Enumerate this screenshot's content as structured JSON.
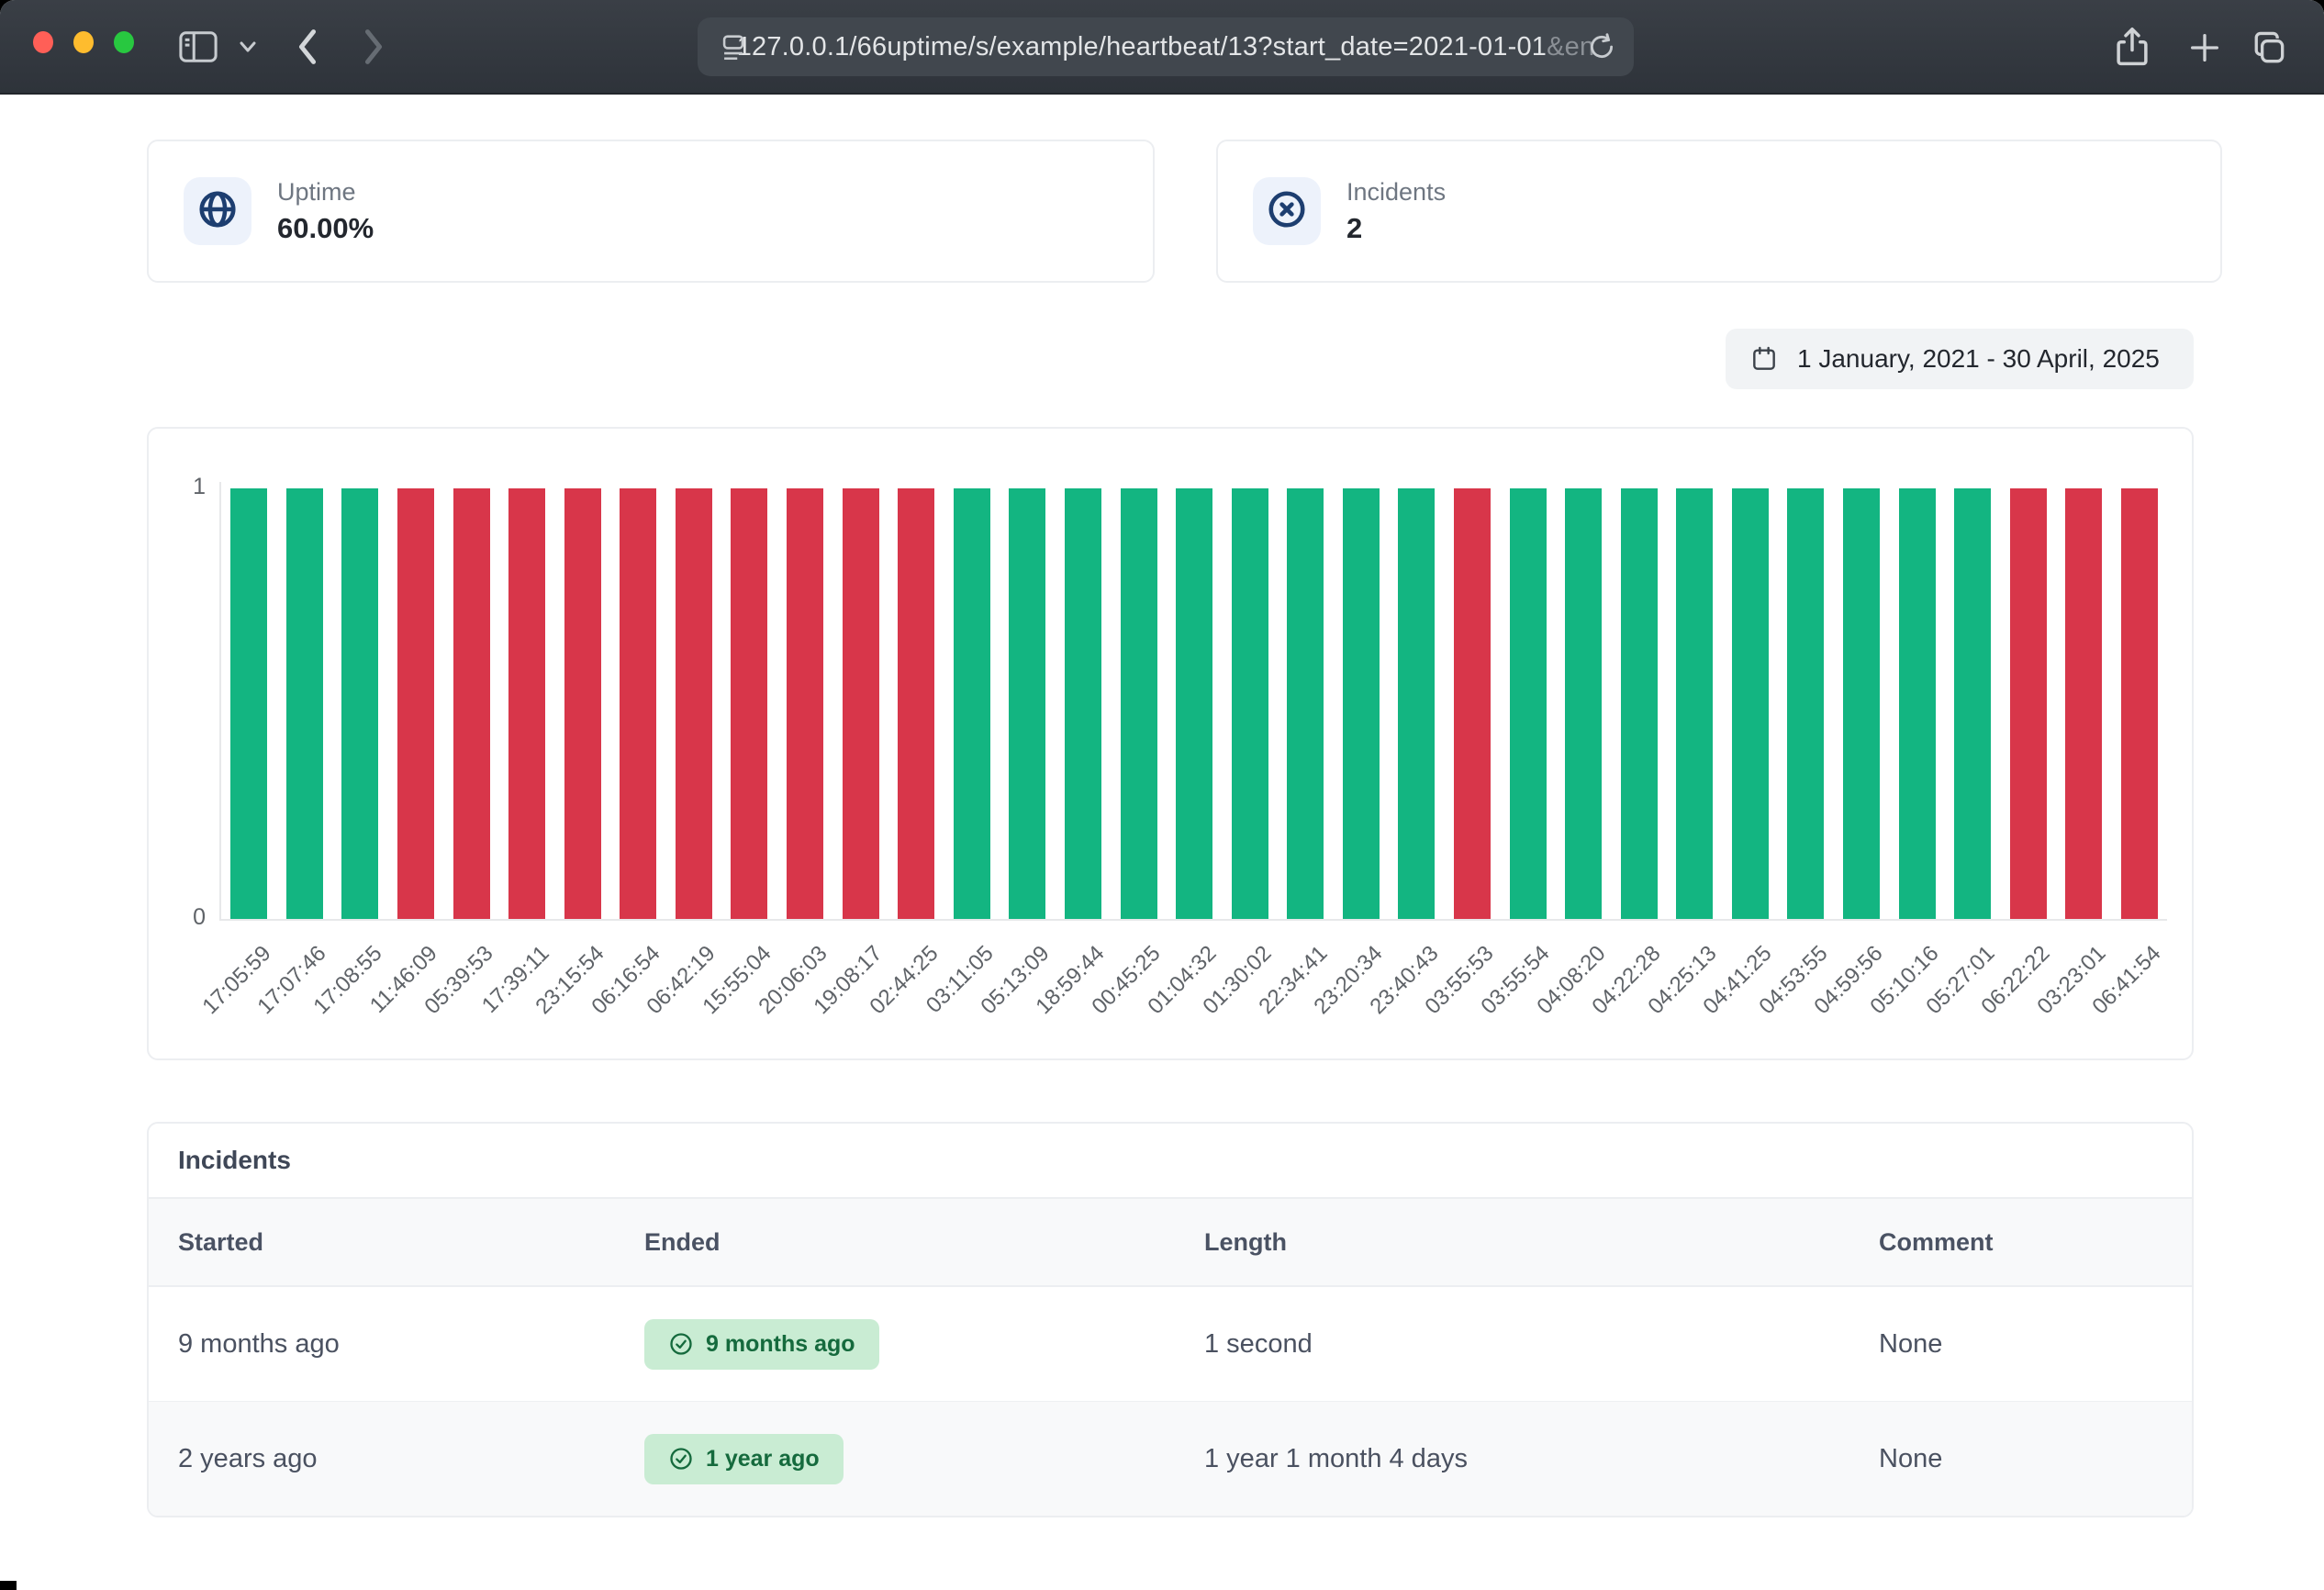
{
  "browser": {
    "url_main": "127.0.0.1/66uptime/s/example/heartbeat/13?start_date=2021-01-01",
    "url_fade": "&en"
  },
  "stats": {
    "uptime": {
      "label": "Uptime",
      "value": "60.00%"
    },
    "incidents": {
      "label": "Incidents",
      "value": "2"
    }
  },
  "date_range": {
    "label": "1 January, 2021 - 30 April, 2025"
  },
  "chart_data": {
    "type": "bar",
    "categories": [
      "17:05:59",
      "17:07:46",
      "17:08:55",
      "11:46:09",
      "05:39:53",
      "17:39:11",
      "23:15:54",
      "06:16:54",
      "06:42:19",
      "15:55:04",
      "20:06:03",
      "19:08:17",
      "02:44:25",
      "03:11:05",
      "05:13:09",
      "18:59:44",
      "00:45:25",
      "01:04:32",
      "01:30:02",
      "22:34:41",
      "23:20:34",
      "23:40:43",
      "03:55:53",
      "03:55:54",
      "04:08:20",
      "04:22:28",
      "04:25:13",
      "04:41:25",
      "04:53:55",
      "04:59:56",
      "05:10:16",
      "05:27:01",
      "06:22:22",
      "03:23:01",
      "06:41:54"
    ],
    "values": [
      1,
      1,
      1,
      1,
      1,
      1,
      1,
      1,
      1,
      1,
      1,
      1,
      1,
      1,
      1,
      1,
      1,
      1,
      1,
      1,
      1,
      1,
      1,
      1,
      1,
      1,
      1,
      1,
      1,
      1,
      1,
      1,
      1,
      1,
      1
    ],
    "statuses": [
      "up",
      "up",
      "up",
      "down",
      "down",
      "down",
      "down",
      "down",
      "down",
      "down",
      "down",
      "down",
      "down",
      "up",
      "up",
      "up",
      "up",
      "up",
      "up",
      "up",
      "up",
      "up",
      "down",
      "up",
      "up",
      "up",
      "up",
      "up",
      "up",
      "up",
      "up",
      "up",
      "down",
      "down",
      "down"
    ],
    "colors": {
      "up": "#13b581",
      "down": "#d8364a"
    },
    "ylim": [
      0,
      1
    ],
    "yticks": [
      1,
      0
    ],
    "xlabel": "",
    "ylabel": "",
    "grid": false,
    "legend": false
  },
  "incidents_table": {
    "title": "Incidents",
    "columns": [
      "Started",
      "Ended",
      "Length",
      "Comment"
    ],
    "rows": [
      {
        "started": "9 months ago",
        "ended": "9 months ago",
        "length": "1 second",
        "comment": "None"
      },
      {
        "started": "2 years ago",
        "ended": "1 year ago",
        "length": "1 year 1 month 4 days",
        "comment": "None"
      }
    ]
  },
  "colors": {
    "bar_up": "#13b581",
    "bar_down": "#d8364a",
    "badge_bg": "#c9ecd3",
    "badge_text": "#156a3d",
    "icon_tile_bg": "#edf2fb",
    "icon_navy": "#1d3e70",
    "traffic_red": "#ff5f57",
    "traffic_yellow": "#febc2e",
    "traffic_green": "#28c840"
  }
}
